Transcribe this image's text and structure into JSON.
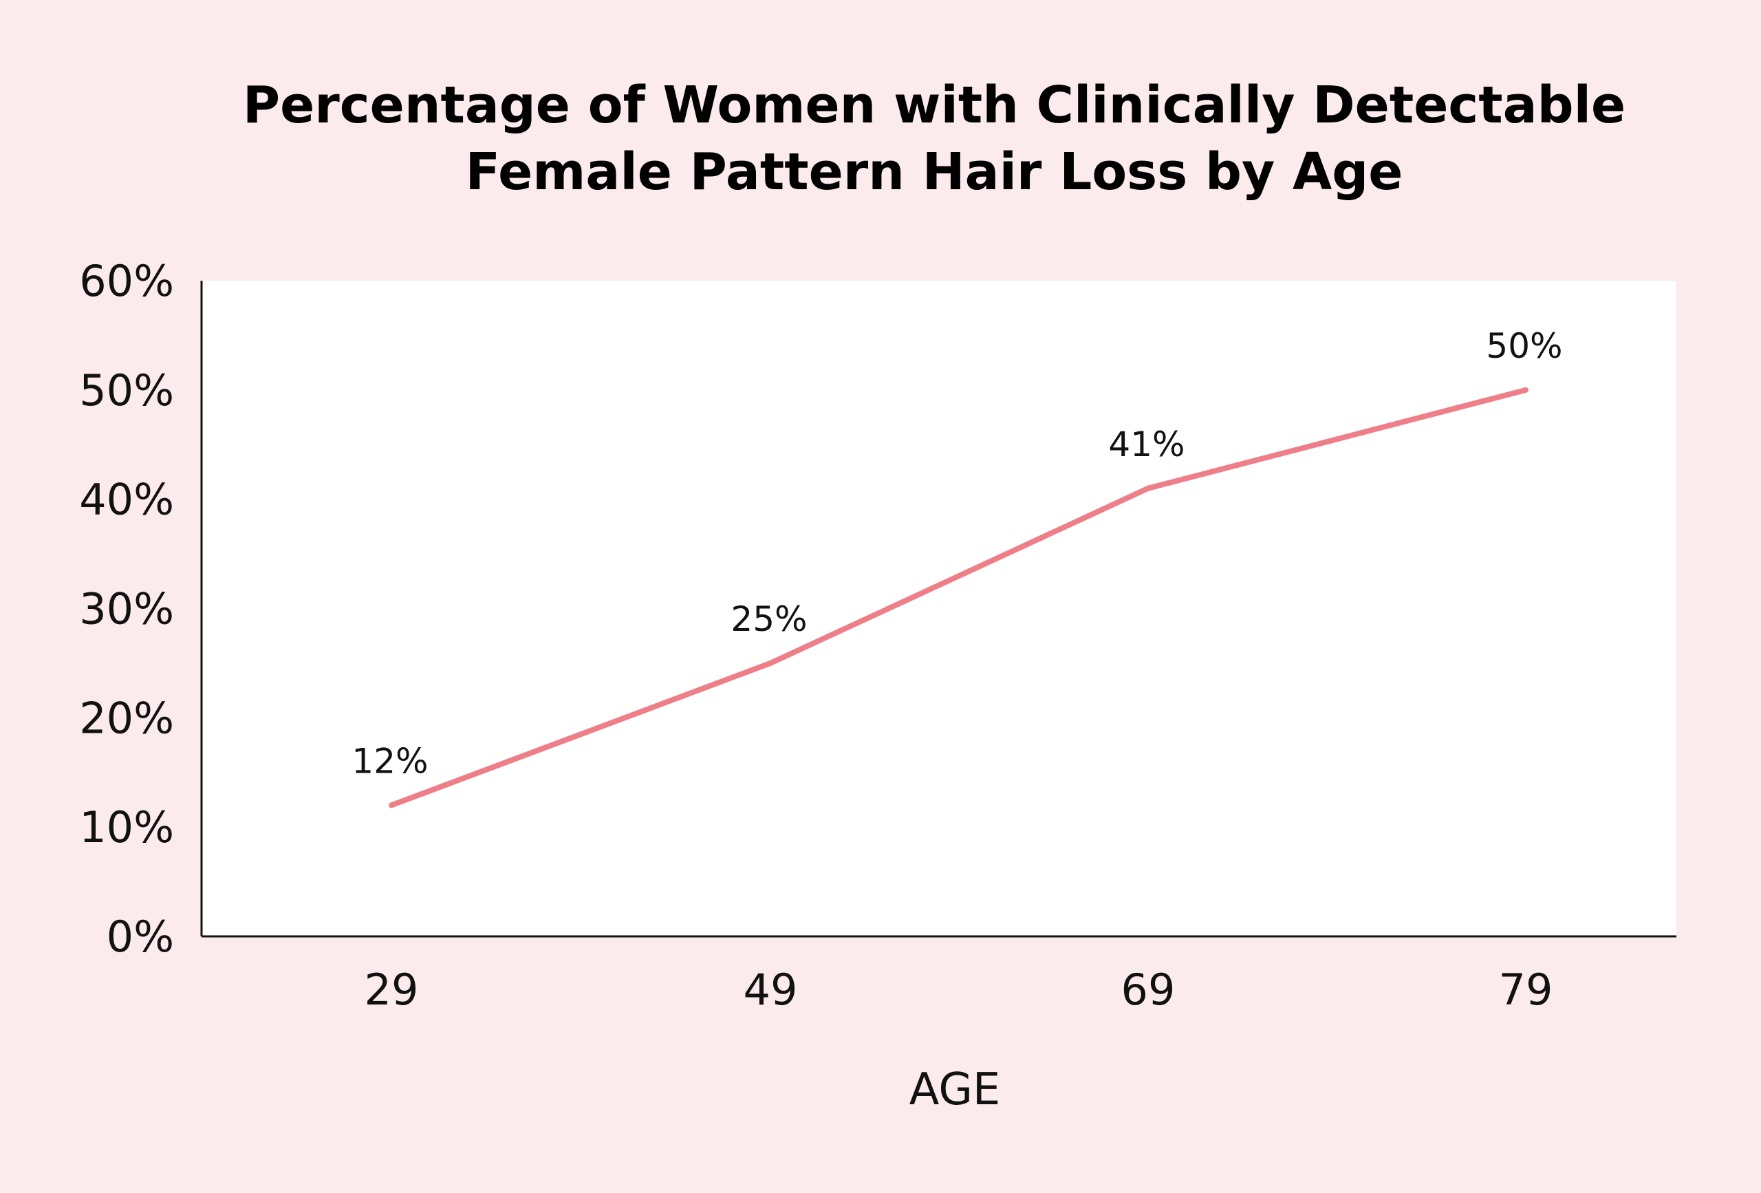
{
  "chart_data": {
    "type": "line",
    "title_lines": [
      "Percentage of Women with Clinically Detectable",
      "Female Pattern Hair Loss by Age"
    ],
    "xlabel": "AGE",
    "ylabel": "",
    "categories": [
      "29",
      "49",
      "69",
      "79"
    ],
    "series": [
      {
        "values": [
          12,
          25,
          41,
          50
        ],
        "data_labels": [
          "12%",
          "25%",
          "41%",
          "50%"
        ]
      }
    ],
    "ylim": [
      0,
      60
    ],
    "y_ticks": [
      0,
      10,
      20,
      30,
      40,
      50,
      60
    ],
    "y_tick_labels": [
      "0%",
      "10%",
      "20%",
      "30%",
      "40%",
      "50%",
      "60%"
    ],
    "grid": false,
    "legend": "none"
  },
  "colors": {
    "page_background": "#fcebec",
    "plot_background": "#ffffff",
    "line": "#ee7f89",
    "axis": "#111111",
    "text": "#111111"
  }
}
